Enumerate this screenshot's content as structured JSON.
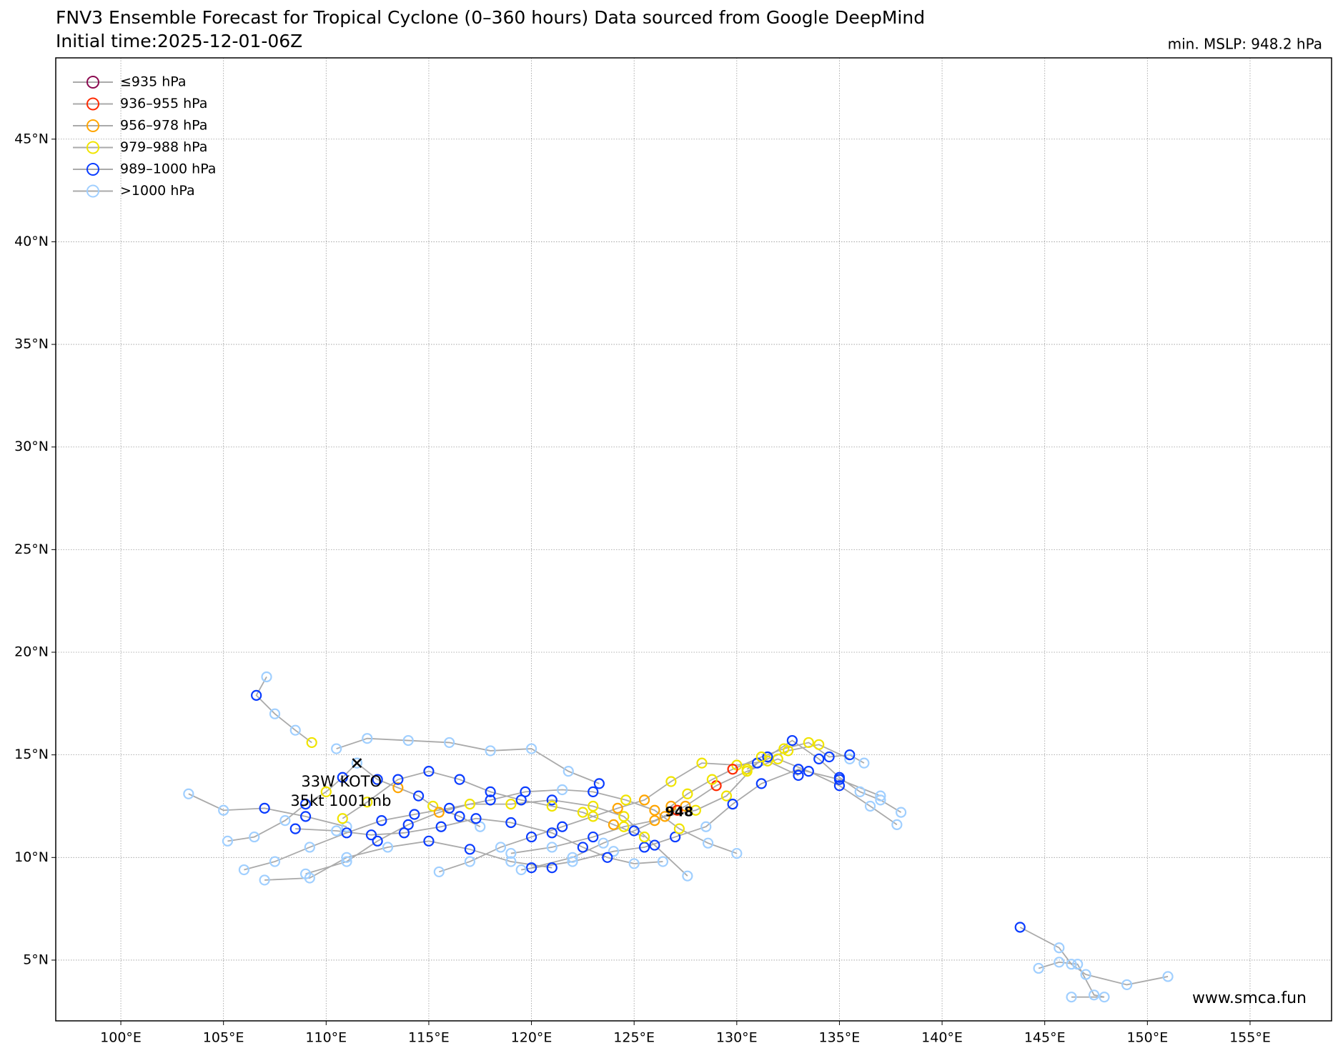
{
  "map": {
    "title": "FNV3 Ensemble Forecast for Tropical Cyclone (0–360 hours) Data sourced from Google DeepMind",
    "subtitle": "Initial time:2025-12-01-06Z",
    "mslp_note": "min. MSLP: 948.2 hPa",
    "watermark": "www.smca.fun",
    "xlim": [
      96.83,
      158.97
    ],
    "ylim": [
      2.04,
      48.96
    ],
    "xticks": [
      {
        "value": 100,
        "label": "100°E"
      },
      {
        "value": 105,
        "label": "105°E"
      },
      {
        "value": 110,
        "label": "110°E"
      },
      {
        "value": 115,
        "label": "115°E"
      },
      {
        "value": 120,
        "label": "120°E"
      },
      {
        "value": 125,
        "label": "125°E"
      },
      {
        "value": 130,
        "label": "130°E"
      },
      {
        "value": 135,
        "label": "135°E"
      },
      {
        "value": 140,
        "label": "140°E"
      },
      {
        "value": 145,
        "label": "145°E"
      },
      {
        "value": 150,
        "label": "150°E"
      },
      {
        "value": 155,
        "label": "155°E"
      }
    ],
    "yticks": [
      {
        "value": 5,
        "label": "5°N"
      },
      {
        "value": 10,
        "label": "10°N"
      },
      {
        "value": 15,
        "label": "15°N"
      },
      {
        "value": 20,
        "label": "20°N"
      },
      {
        "value": 25,
        "label": "25°N"
      },
      {
        "value": 30,
        "label": "30°N"
      },
      {
        "value": 35,
        "label": "35°N"
      },
      {
        "value": 40,
        "label": "40°N"
      },
      {
        "value": 45,
        "label": "45°N"
      }
    ],
    "grid": true,
    "legend": [
      {
        "name": "≤935 hPa",
        "color": "#8b0a50"
      },
      {
        "name": "936–955 hPa",
        "color": "#ff2a00"
      },
      {
        "name": "956–978 hPa",
        "color": "#ffa500"
      },
      {
        "name": "979–988 hPa",
        "color": "#f0e400"
      },
      {
        "name": "989–1000 hPa",
        "color": "#0a3cff"
      },
      {
        "name": ">1000 hPa",
        "color": "#a0cfff"
      }
    ],
    "storm": {
      "lon": 111.5,
      "lat": 14.6,
      "labels": [
        "33W KOTO",
        "35kt 1001mb"
      ]
    },
    "min_label": {
      "text": "948",
      "lon": 127.2,
      "lat": 12.2
    },
    "tracks": [
      [
        [
          111.5,
          14.6,
          5
        ],
        [
          110.8,
          13.9,
          4
        ],
        [
          110,
          13.2,
          3
        ],
        [
          109,
          12.6,
          4
        ],
        [
          108,
          11.8,
          5
        ],
        [
          106.5,
          11,
          5
        ],
        [
          105.2,
          10.8,
          5
        ]
      ],
      [
        [
          111.5,
          14.6,
          5
        ],
        [
          112.5,
          13.8,
          4
        ],
        [
          113.5,
          13.4,
          2
        ],
        [
          114.5,
          13,
          4
        ],
        [
          115.2,
          12.5,
          3
        ],
        [
          116.5,
          12,
          4
        ],
        [
          117.5,
          11.5,
          5
        ]
      ],
      [
        [
          109.3,
          15.6,
          3
        ],
        [
          108.5,
          16.2,
          5
        ],
        [
          107.5,
          17,
          5
        ],
        [
          106.6,
          17.9,
          4
        ],
        [
          107.1,
          18.8,
          5
        ]
      ],
      [
        [
          103.3,
          13.1,
          5
        ],
        [
          105,
          12.3,
          5
        ],
        [
          107,
          12.4,
          4
        ],
        [
          109,
          12,
          4
        ],
        [
          111,
          11.5,
          5
        ]
      ],
      [
        [
          137.8,
          11.6,
          5
        ],
        [
          136.5,
          12.5,
          5
        ],
        [
          135,
          13.5,
          4
        ],
        [
          133.5,
          14.2,
          4
        ],
        [
          132,
          14.8,
          3
        ],
        [
          130.5,
          14.2,
          3
        ],
        [
          129,
          13.5,
          1
        ],
        [
          127.5,
          12.5,
          2
        ],
        [
          126,
          11.8,
          2
        ],
        [
          124.5,
          11.5,
          3
        ],
        [
          123,
          11,
          4
        ],
        [
          121,
          10.5,
          5
        ],
        [
          119,
          10.2,
          5
        ]
      ],
      [
        [
          135.5,
          14.8,
          5
        ],
        [
          134,
          15.5,
          3
        ],
        [
          132.5,
          15.2,
          3
        ],
        [
          131,
          14.6,
          4
        ],
        [
          129.5,
          13,
          3
        ],
        [
          128,
          12.3,
          3
        ],
        [
          126.5,
          12,
          2
        ],
        [
          125,
          11.3,
          4
        ],
        [
          123.5,
          10.7,
          5
        ],
        [
          122,
          10,
          5
        ],
        [
          120,
          9.5,
          4
        ]
      ],
      [
        [
          137,
          13,
          5
        ],
        [
          135,
          13.8,
          4
        ],
        [
          133,
          14.3,
          4
        ],
        [
          131.2,
          13.6,
          4
        ],
        [
          129.8,
          12.6,
          4
        ],
        [
          128.5,
          11.5,
          5
        ],
        [
          127,
          11,
          4
        ],
        [
          125.5,
          10.5,
          4
        ],
        [
          124,
          10.3,
          5
        ],
        [
          122,
          9.8,
          5
        ],
        [
          119.5,
          9.4,
          5
        ]
      ],
      [
        [
          130,
          10.2,
          5
        ],
        [
          128.6,
          10.7,
          5
        ],
        [
          127.2,
          11.4,
          3
        ],
        [
          126,
          12.3,
          2
        ],
        [
          124.6,
          12.8,
          3
        ],
        [
          123,
          13.2,
          4
        ],
        [
          121.5,
          13.3,
          5
        ],
        [
          119.7,
          13.2,
          4
        ],
        [
          118,
          12.8,
          4
        ],
        [
          116,
          12.4,
          4
        ],
        [
          114.3,
          12.1,
          4
        ],
        [
          112.7,
          11.8,
          4
        ],
        [
          111,
          11.2,
          4
        ],
        [
          109.2,
          10.5,
          5
        ],
        [
          107.5,
          9.8,
          5
        ],
        [
          106,
          9.4,
          5
        ]
      ],
      [
        [
          127.6,
          9.1,
          5
        ],
        [
          126,
          10.6,
          4
        ],
        [
          124.5,
          12,
          3
        ],
        [
          123,
          12.5,
          3
        ],
        [
          121,
          12.8,
          4
        ],
        [
          119,
          12.6,
          3
        ],
        [
          117,
          12.6,
          3
        ],
        [
          115.5,
          12.2,
          2
        ],
        [
          114,
          11.6,
          4
        ],
        [
          112.5,
          10.8,
          4
        ],
        [
          111,
          9.8,
          5
        ],
        [
          109,
          9.2,
          5
        ]
      ],
      [
        [
          121,
          9.5,
          4
        ],
        [
          119,
          9.8,
          5
        ],
        [
          117,
          10.4,
          4
        ],
        [
          115,
          10.8,
          4
        ],
        [
          113,
          10.5,
          5
        ],
        [
          111,
          10,
          5
        ],
        [
          109.2,
          9,
          5
        ],
        [
          107,
          8.9,
          5
        ]
      ],
      [
        [
          123.3,
          13.6,
          4
        ],
        [
          121.8,
          14.2,
          5
        ],
        [
          120,
          15.3,
          5
        ],
        [
          118,
          15.2,
          5
        ],
        [
          116,
          15.6,
          5
        ],
        [
          114,
          15.7,
          5
        ],
        [
          112,
          15.8,
          5
        ],
        [
          110.5,
          15.3,
          5
        ]
      ],
      [
        [
          133,
          14,
          4
        ],
        [
          131.5,
          14.7,
          3
        ],
        [
          130,
          14.5,
          3
        ],
        [
          128.3,
          14.6,
          3
        ],
        [
          126.8,
          13.7,
          3
        ],
        [
          125.5,
          12.8,
          2
        ],
        [
          124.2,
          12.4,
          2
        ],
        [
          123,
          12,
          3
        ],
        [
          121.5,
          11.5,
          4
        ],
        [
          120,
          11,
          4
        ],
        [
          118.5,
          10.5,
          5
        ],
        [
          117,
          9.8,
          5
        ],
        [
          115.5,
          9.3,
          5
        ]
      ],
      [
        [
          138,
          12.2,
          5
        ],
        [
          137,
          12.8,
          5
        ],
        [
          136,
          13.2,
          5
        ],
        [
          135,
          13.9,
          4
        ],
        [
          134,
          14.8,
          4
        ],
        [
          132.7,
          15.7,
          4
        ],
        [
          131.5,
          14.9,
          4
        ],
        [
          130.5,
          14.3,
          3
        ]
      ],
      [
        [
          143.8,
          6.6,
          4
        ],
        [
          145.7,
          5.6,
          5
        ],
        [
          146.3,
          4.8,
          5
        ],
        [
          147,
          4.3,
          5
        ],
        [
          149,
          3.8,
          5
        ],
        [
          151,
          4.2,
          5
        ]
      ],
      [
        [
          144.7,
          4.6,
          5
        ],
        [
          145.7,
          4.9,
          5
        ],
        [
          146.6,
          4.8,
          5
        ],
        [
          147.4,
          3.3,
          5
        ],
        [
          147.9,
          3.2,
          5
        ],
        [
          146.3,
          3.2,
          5
        ]
      ],
      [
        [
          125.5,
          11,
          3
        ],
        [
          124,
          11.6,
          2
        ],
        [
          122.5,
          12.2,
          3
        ],
        [
          121,
          12.5,
          3
        ],
        [
          119.5,
          12.8,
          4
        ],
        [
          118,
          13.2,
          4
        ],
        [
          116.5,
          13.8,
          4
        ],
        [
          115,
          14.2,
          4
        ],
        [
          113.5,
          13.8,
          4
        ],
        [
          112,
          12.7,
          3
        ],
        [
          110.8,
          11.9,
          3
        ]
      ],
      [
        [
          136.2,
          14.6,
          5
        ],
        [
          135.5,
          15,
          4
        ],
        [
          134.5,
          14.9,
          4
        ],
        [
          133.5,
          15.6,
          3
        ],
        [
          132.3,
          15.3,
          3
        ],
        [
          131.2,
          14.9,
          3
        ],
        [
          129.8,
          14.3,
          1
        ],
        [
          128.8,
          13.8,
          3
        ],
        [
          127.6,
          13.1,
          3
        ],
        [
          126.8,
          12.5,
          2
        ],
        [
          127.1,
          12.3,
          1
        ]
      ],
      [
        [
          126.4,
          9.8,
          5
        ],
        [
          125,
          9.7,
          5
        ],
        [
          123.7,
          10,
          4
        ],
        [
          122.5,
          10.5,
          4
        ],
        [
          121,
          11.2,
          4
        ],
        [
          119,
          11.7,
          4
        ],
        [
          117.3,
          11.9,
          4
        ],
        [
          115.6,
          11.5,
          4
        ],
        [
          113.8,
          11.2,
          4
        ],
        [
          112.2,
          11.1,
          4
        ],
        [
          110.5,
          11.3,
          5
        ],
        [
          108.5,
          11.4,
          4
        ]
      ]
    ]
  }
}
